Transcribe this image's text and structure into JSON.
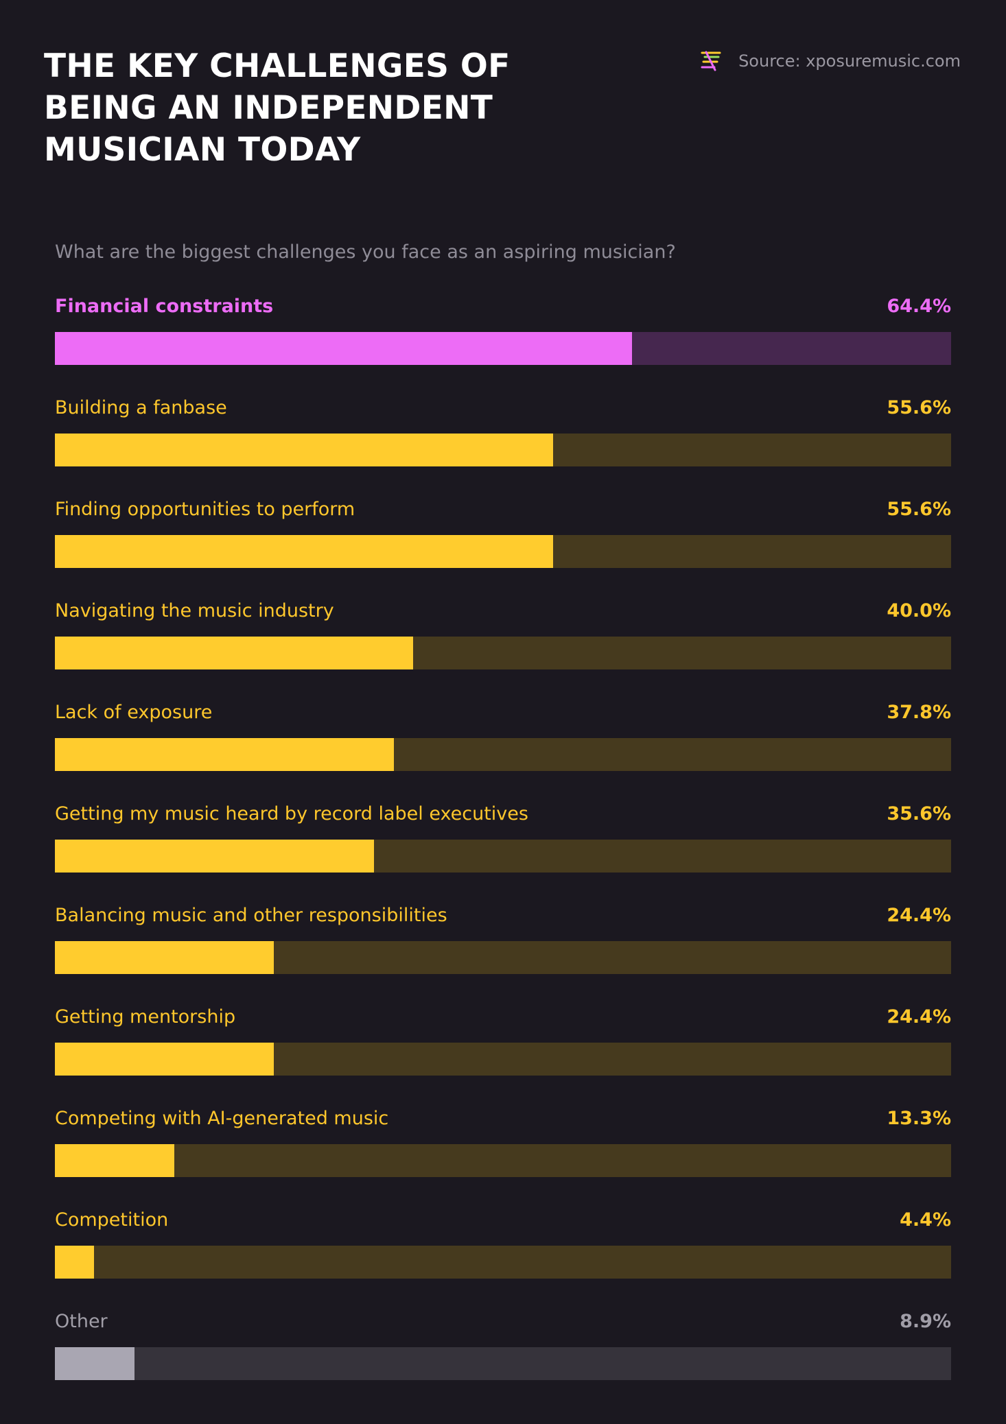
{
  "header": {
    "title": "THE KEY CHALLENGES OF BEING AN INDEPENDENT MUSICIAN TODAY",
    "source": "Source: xposuremusic.com",
    "logo_icon": "xposure-logo-icon"
  },
  "colors": {
    "background": "#1b1820",
    "highlight_fill": "#ed6cf6",
    "highlight_track": "#46274f",
    "highlight_text": "#ed6cf6",
    "default_fill": "#ffcc2e",
    "default_track": "#463a1e",
    "default_text": "#ffc72c",
    "other_fill": "#a9a6b2",
    "other_track": "#36333b",
    "other_text": "#a19ea8"
  },
  "chart_data": {
    "type": "bar",
    "orientation": "horizontal",
    "title": "What are the biggest challenges you face as an aspiring musician?",
    "xlim": [
      0,
      100
    ],
    "unit": "%",
    "categories": [
      "Financial constraints",
      "Building a fanbase",
      "Finding opportunities to perform",
      "Navigating the music industry",
      "Lack of exposure",
      "Getting my music heard by record label executives",
      "Balancing music and other responsibilities",
      "Getting mentorship",
      "Competing with AI-generated music",
      "Competition",
      "Other"
    ],
    "values": [
      64.4,
      55.6,
      55.6,
      40.0,
      37.8,
      35.6,
      24.4,
      24.4,
      13.3,
      4.4,
      8.9
    ],
    "value_labels": [
      "64.4%",
      "55.6%",
      "55.6%",
      "40.0%",
      "37.8%",
      "35.6%",
      "24.4%",
      "24.4%",
      "13.3%",
      "4.4%",
      "8.9%"
    ],
    "highlight": "Financial constraints",
    "muted": "Other"
  }
}
